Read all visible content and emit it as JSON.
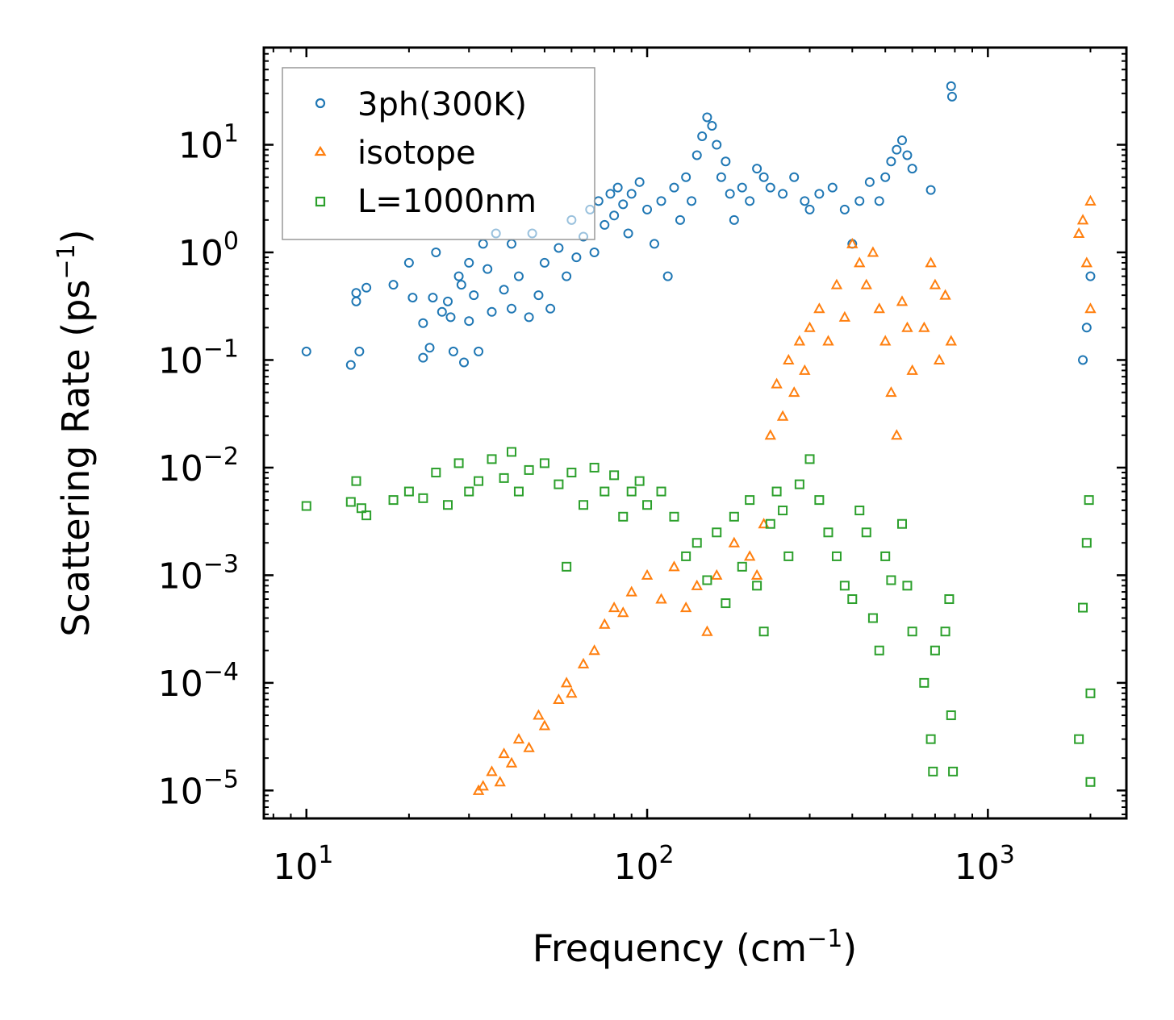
{
  "chart_data": {
    "type": "scatter",
    "title": "",
    "xlabel": "Frequency (cm",
    "xlabel_sup": "−1",
    "xlabel_end": ")",
    "ylabel": "Scattering Rate (ps",
    "ylabel_sup": "−1",
    "ylabel_end": ")",
    "xscale": "log",
    "yscale": "log",
    "xlim": [
      7.5,
      2550
    ],
    "ylim": [
      5.5e-06,
      80
    ],
    "x_ticks": [
      {
        "value": 10,
        "base": "10",
        "exp": "1"
      },
      {
        "value": 100,
        "base": "10",
        "exp": "2"
      },
      {
        "value": 1000,
        "base": "10",
        "exp": "3"
      }
    ],
    "y_ticks": [
      {
        "value": 10,
        "base": "10",
        "exp": "1"
      },
      {
        "value": 1,
        "base": "10",
        "exp": "0"
      },
      {
        "value": 0.1,
        "base": "10",
        "exp": "−1"
      },
      {
        "value": 0.01,
        "base": "10",
        "exp": "−2"
      },
      {
        "value": 0.001,
        "base": "10",
        "exp": "−3"
      },
      {
        "value": 0.0001,
        "base": "10",
        "exp": "−4"
      },
      {
        "value": 1e-05,
        "base": "10",
        "exp": "−5"
      }
    ],
    "legend_position": "top-left",
    "series": [
      {
        "name": "3ph(300K)",
        "marker": "circle",
        "color": "#1f77b4",
        "points": [
          [
            10,
            0.12
          ],
          [
            13.5,
            0.09
          ],
          [
            14,
            0.35
          ],
          [
            14,
            0.42
          ],
          [
            14.3,
            0.12
          ],
          [
            15,
            0.47
          ],
          [
            18,
            0.5
          ],
          [
            20,
            0.8
          ],
          [
            20.5,
            0.38
          ],
          [
            22,
            0.22
          ],
          [
            22,
            0.105
          ],
          [
            23,
            0.13
          ],
          [
            23.5,
            0.38
          ],
          [
            24,
            1.0
          ],
          [
            25,
            0.28
          ],
          [
            26,
            0.35
          ],
          [
            26.5,
            0.25
          ],
          [
            27,
            0.12
          ],
          [
            28,
            0.6
          ],
          [
            28.5,
            0.5
          ],
          [
            29,
            0.095
          ],
          [
            30,
            0.23
          ],
          [
            30,
            0.8
          ],
          [
            31,
            0.4
          ],
          [
            32,
            0.12
          ],
          [
            33,
            1.2
          ],
          [
            34,
            0.7
          ],
          [
            35,
            0.28
          ],
          [
            36,
            1.5
          ],
          [
            38,
            0.45
          ],
          [
            40,
            0.3
          ],
          [
            40,
            1.2
          ],
          [
            42,
            0.6
          ],
          [
            45,
            0.25
          ],
          [
            46,
            1.5
          ],
          [
            48,
            0.4
          ],
          [
            50,
            0.8
          ],
          [
            52,
            0.3
          ],
          [
            55,
            1.1
          ],
          [
            58,
            0.6
          ],
          [
            60,
            2.0
          ],
          [
            62,
            0.9
          ],
          [
            65,
            1.4
          ],
          [
            68,
            2.5
          ],
          [
            70,
            1.0
          ],
          [
            72,
            3.0
          ],
          [
            75,
            1.8
          ],
          [
            78,
            3.5
          ],
          [
            80,
            2.2
          ],
          [
            82,
            4.0
          ],
          [
            85,
            2.8
          ],
          [
            88,
            1.5
          ],
          [
            90,
            3.5
          ],
          [
            95,
            4.5
          ],
          [
            100,
            2.5
          ],
          [
            105,
            1.2
          ],
          [
            110,
            3.0
          ],
          [
            115,
            0.6
          ],
          [
            120,
            4.0
          ],
          [
            125,
            2.0
          ],
          [
            130,
            5.0
          ],
          [
            135,
            3.0
          ],
          [
            140,
            8.0
          ],
          [
            145,
            12
          ],
          [
            150,
            18
          ],
          [
            155,
            15
          ],
          [
            160,
            10
          ],
          [
            165,
            5.0
          ],
          [
            170,
            7.0
          ],
          [
            175,
            3.5
          ],
          [
            180,
            2.0
          ],
          [
            190,
            4.0
          ],
          [
            200,
            3.0
          ],
          [
            210,
            6.0
          ],
          [
            220,
            5.0
          ],
          [
            230,
            4.0
          ],
          [
            250,
            3.5
          ],
          [
            270,
            5.0
          ],
          [
            290,
            3.0
          ],
          [
            300,
            2.5
          ],
          [
            320,
            3.5
          ],
          [
            350,
            4.0
          ],
          [
            380,
            2.5
          ],
          [
            400,
            1.2
          ],
          [
            420,
            3.0
          ],
          [
            450,
            4.5
          ],
          [
            480,
            3.0
          ],
          [
            500,
            5.0
          ],
          [
            520,
            7.0
          ],
          [
            540,
            9.0
          ],
          [
            560,
            11
          ],
          [
            580,
            8.0
          ],
          [
            600,
            6.0
          ],
          [
            680,
            3.8
          ],
          [
            780,
            35
          ],
          [
            785,
            28
          ],
          [
            1900,
            0.1
          ],
          [
            1950,
            0.2
          ],
          [
            2000,
            0.6
          ]
        ]
      },
      {
        "name": "isotope",
        "marker": "triangle",
        "color": "#ff7f0e",
        "points": [
          [
            32,
            1e-05
          ],
          [
            33,
            1.1e-05
          ],
          [
            35,
            1.5e-05
          ],
          [
            37,
            1.2e-05
          ],
          [
            38,
            2.2e-05
          ],
          [
            40,
            1.8e-05
          ],
          [
            42,
            3e-05
          ],
          [
            45,
            2.5e-05
          ],
          [
            48,
            5e-05
          ],
          [
            50,
            4e-05
          ],
          [
            55,
            7e-05
          ],
          [
            58,
            0.0001
          ],
          [
            60,
            8e-05
          ],
          [
            65,
            0.00015
          ],
          [
            70,
            0.0002
          ],
          [
            75,
            0.00035
          ],
          [
            80,
            0.0005
          ],
          [
            85,
            0.00045
          ],
          [
            90,
            0.0007
          ],
          [
            100,
            0.001
          ],
          [
            110,
            0.0006
          ],
          [
            120,
            0.0012
          ],
          [
            130,
            0.0005
          ],
          [
            140,
            0.0008
          ],
          [
            150,
            0.0003
          ],
          [
            160,
            0.001
          ],
          [
            180,
            0.002
          ],
          [
            200,
            0.0015
          ],
          [
            210,
            0.001
          ],
          [
            220,
            0.003
          ],
          [
            230,
            0.02
          ],
          [
            240,
            0.06
          ],
          [
            250,
            0.03
          ],
          [
            260,
            0.1
          ],
          [
            270,
            0.05
          ],
          [
            280,
            0.15
          ],
          [
            290,
            0.08
          ],
          [
            300,
            0.2
          ],
          [
            320,
            0.3
          ],
          [
            340,
            0.15
          ],
          [
            360,
            0.5
          ],
          [
            380,
            0.25
          ],
          [
            400,
            1.2
          ],
          [
            420,
            0.8
          ],
          [
            440,
            0.5
          ],
          [
            460,
            1.0
          ],
          [
            480,
            0.3
          ],
          [
            500,
            0.15
          ],
          [
            520,
            0.05
          ],
          [
            540,
            0.02
          ],
          [
            560,
            0.35
          ],
          [
            580,
            0.2
          ],
          [
            600,
            0.08
          ],
          [
            650,
            0.2
          ],
          [
            680,
            0.8
          ],
          [
            700,
            0.5
          ],
          [
            720,
            0.1
          ],
          [
            750,
            0.4
          ],
          [
            780,
            0.15
          ],
          [
            1850,
            1.5
          ],
          [
            1900,
            2.0
          ],
          [
            1950,
            0.8
          ],
          [
            2000,
            0.3
          ],
          [
            2000,
            3.0
          ]
        ]
      },
      {
        "name": "L=1000nm",
        "marker": "square",
        "color": "#2ca02c",
        "points": [
          [
            10,
            0.0044
          ],
          [
            13.5,
            0.0048
          ],
          [
            14,
            0.0075
          ],
          [
            14.5,
            0.0042
          ],
          [
            15,
            0.0036
          ],
          [
            18,
            0.005
          ],
          [
            20,
            0.006
          ],
          [
            22,
            0.0052
          ],
          [
            24,
            0.009
          ],
          [
            26,
            0.0045
          ],
          [
            28,
            0.011
          ],
          [
            30,
            0.006
          ],
          [
            32,
            0.0075
          ],
          [
            35,
            0.012
          ],
          [
            38,
            0.008
          ],
          [
            40,
            0.014
          ],
          [
            42,
            0.006
          ],
          [
            45,
            0.0095
          ],
          [
            50,
            0.011
          ],
          [
            55,
            0.007
          ],
          [
            58,
            0.0012
          ],
          [
            60,
            0.009
          ],
          [
            65,
            0.0045
          ],
          [
            70,
            0.01
          ],
          [
            75,
            0.006
          ],
          [
            80,
            0.0085
          ],
          [
            85,
            0.0035
          ],
          [
            90,
            0.006
          ],
          [
            95,
            0.0075
          ],
          [
            100,
            0.0045
          ],
          [
            110,
            0.006
          ],
          [
            120,
            0.0035
          ],
          [
            130,
            0.0015
          ],
          [
            140,
            0.002
          ],
          [
            150,
            0.0009
          ],
          [
            160,
            0.0025
          ],
          [
            170,
            0.00055
          ],
          [
            180,
            0.0035
          ],
          [
            190,
            0.0012
          ],
          [
            200,
            0.005
          ],
          [
            210,
            0.0008
          ],
          [
            220,
            0.0003
          ],
          [
            230,
            0.003
          ],
          [
            240,
            0.006
          ],
          [
            250,
            0.004
          ],
          [
            260,
            0.0015
          ],
          [
            280,
            0.007
          ],
          [
            300,
            0.012
          ],
          [
            320,
            0.005
          ],
          [
            340,
            0.0025
          ],
          [
            360,
            0.0015
          ],
          [
            380,
            0.0008
          ],
          [
            400,
            0.0006
          ],
          [
            420,
            0.004
          ],
          [
            440,
            0.0025
          ],
          [
            460,
            0.0004
          ],
          [
            480,
            0.0002
          ],
          [
            500,
            0.0015
          ],
          [
            520,
            0.0009
          ],
          [
            560,
            0.003
          ],
          [
            580,
            0.0008
          ],
          [
            600,
            0.0003
          ],
          [
            650,
            0.0001
          ],
          [
            680,
            3e-05
          ],
          [
            690,
            1.5e-05
          ],
          [
            700,
            0.0002
          ],
          [
            750,
            0.0003
          ],
          [
            770,
            0.0006
          ],
          [
            780,
            5e-05
          ],
          [
            790,
            1.5e-05
          ],
          [
            1850,
            3e-05
          ],
          [
            1900,
            0.0005
          ],
          [
            1950,
            0.002
          ],
          [
            1980,
            0.005
          ],
          [
            2000,
            8e-05
          ],
          [
            2000,
            1.2e-05
          ]
        ]
      }
    ]
  }
}
